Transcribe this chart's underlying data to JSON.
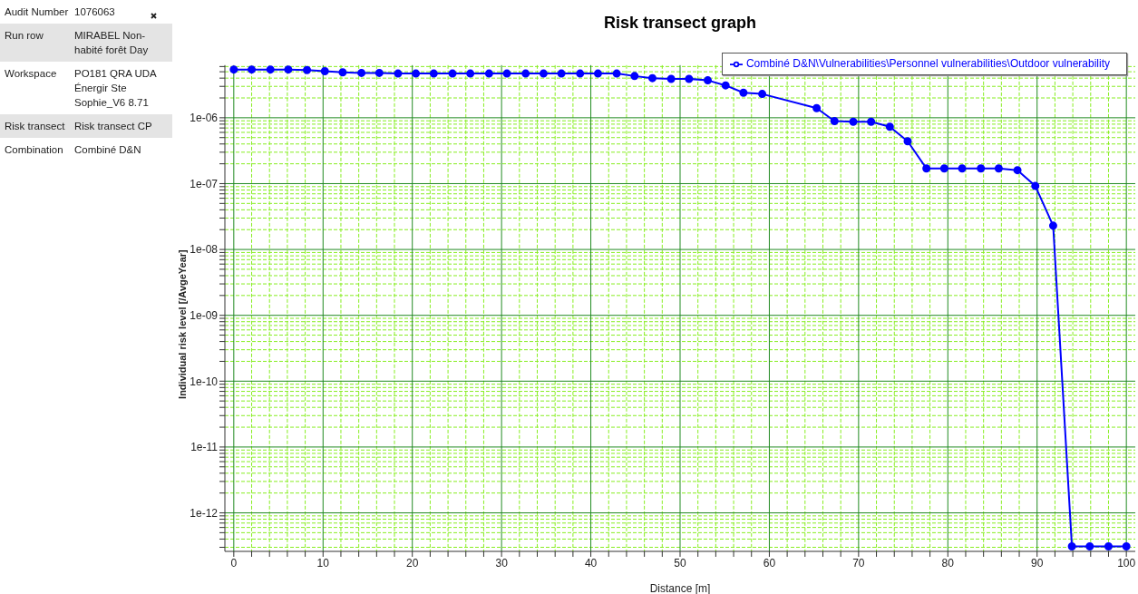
{
  "chart_data": [
    {
      "type": "other",
      "annotations": [
        "Audit Number",
        "1076063",
        "Run row",
        "MIRABEL Non-habité forêt Day",
        "Workspace",
        "PO181 QRA UDA Énergir Ste Sophie_V6 8.71",
        "Risk transect",
        "Risk transect CP",
        "Combination",
        "Combiné D&N"
      ]
    },
    {
      "type": "line",
      "title": "Risk transect graph",
      "xlabel": "Distance [m]",
      "ylabel": "Individual risk level [/AvgeYear]",
      "x": [
        0,
        2,
        4.1,
        6.1,
        8.2,
        10.2,
        12.2,
        14.3,
        16.3,
        18.4,
        20.4,
        22.4,
        24.5,
        26.5,
        28.6,
        30.6,
        32.7,
        34.7,
        36.7,
        38.8,
        40.8,
        42.9,
        44.9,
        46.9,
        49,
        51,
        53.1,
        55.1,
        57.1,
        59.2,
        61.2,
        63.3,
        65.3,
        67.3,
        69.4,
        71.4,
        73.5,
        75.5,
        77.6,
        79.6,
        81.6,
        83.7,
        85.7,
        87.8,
        89.8,
        91.8,
        93.9,
        95.9,
        98,
        100
      ],
      "series": [
        {
          "name": "Combiné D&N\\Vulnerabilities\\Personnel vulnerabilities\\Outdoor vulnerability",
          "color": "#0000ff",
          "values": [
            5.4e-06,
            5.4e-06,
            5.4e-06,
            5.4e-06,
            5.3e-06,
            5.1e-06,
            4.9e-06,
            4.8e-06,
            4.8e-06,
            4.7e-06,
            4.7e-06,
            4.7e-06,
            4.7e-06,
            4.7e-06,
            4.7e-06,
            4.7e-06,
            4.7e-06,
            4.7e-06,
            4.7e-06,
            4.7e-06,
            4.7e-06,
            4.7e-06,
            4.3e-06,
            4e-06,
            3.9e-06,
            3.9e-06,
            3.7e-06,
            3.1e-06,
            2.4e-06,
            2.3e-06,
            null,
            null,
            1.4e-06,
            8.9e-07,
            8.7e-07,
            8.7e-07,
            7.3e-07,
            4.4e-07,
            1.7e-07,
            1.7e-07,
            1.7e-07,
            1.7e-07,
            1.7e-07,
            1.6e-07,
            9.2e-08,
            2.3e-08,
            3.1e-13,
            3.1e-13,
            3.1e-13,
            3.1e-13
          ]
        }
      ],
      "xlim": [
        -1,
        101
      ],
      "xticks": [
        0,
        {
          "value": 2,
          "label": null
        },
        {
          "value": 4,
          "label": null
        },
        {
          "value": 6,
          "label": null
        },
        {
          "value": 8,
          "label": null
        },
        10,
        {
          "value": 12,
          "label": null
        },
        {
          "value": 14,
          "label": null
        },
        {
          "value": 16,
          "label": null
        },
        {
          "value": 18,
          "label": null
        },
        20,
        {
          "value": 22,
          "label": null
        },
        {
          "value": 24,
          "label": null
        },
        {
          "value": 26,
          "label": null
        },
        {
          "value": 28,
          "label": null
        },
        30,
        {
          "value": 32,
          "label": null
        },
        {
          "value": 34,
          "label": null
        },
        {
          "value": 36,
          "label": null
        },
        {
          "value": 38,
          "label": null
        },
        40,
        {
          "value": 42,
          "label": null
        },
        {
          "value": 44,
          "label": null
        },
        {
          "value": 46,
          "label": null
        },
        {
          "value": 48,
          "label": null
        },
        50,
        {
          "value": 52,
          "label": null
        },
        {
          "value": 54,
          "label": null
        },
        {
          "value": 56,
          "label": null
        },
        {
          "value": 58,
          "label": null
        },
        60,
        {
          "value": 62,
          "label": null
        },
        {
          "value": 64,
          "label": null
        },
        {
          "value": 66,
          "label": null
        },
        {
          "value": 68,
          "label": null
        },
        70,
        {
          "value": 72,
          "label": null
        },
        {
          "value": 74,
          "label": null
        },
        {
          "value": 76,
          "label": null
        },
        {
          "value": 78,
          "label": null
        },
        80,
        {
          "value": 82,
          "label": null
        },
        {
          "value": 84,
          "label": null
        },
        {
          "value": 86,
          "label": null
        },
        {
          "value": 88,
          "label": null
        },
        90,
        {
          "value": 92,
          "label": null
        },
        {
          "value": 94,
          "label": null
        },
        {
          "value": 96,
          "label": null
        },
        {
          "value": 98,
          "label": null
        },
        100
      ],
      "ylim": [
        2.6e-13,
        6.3e-06
      ],
      "yticks": [
        {
          "value": 3e-13,
          "label": null
        },
        {
          "value": 4e-13,
          "label": null
        },
        {
          "value": 5e-13,
          "label": null
        },
        {
          "value": 6e-13,
          "label": null
        },
        {
          "value": 7e-13,
          "label": null
        },
        {
          "value": 8e-13,
          "label": null
        },
        {
          "value": 9e-13,
          "label": null
        },
        {
          "value": 1e-12,
          "label": "1e-12"
        },
        {
          "value": 2e-12,
          "label": null
        },
        {
          "value": 3e-12,
          "label": null
        },
        {
          "value": 4e-12,
          "label": null
        },
        {
          "value": 5e-12,
          "label": null
        },
        {
          "value": 6e-12,
          "label": null
        },
        {
          "value": 7e-12,
          "label": null
        },
        {
          "value": 8e-12,
          "label": null
        },
        {
          "value": 9e-12,
          "label": null
        },
        {
          "value": 1e-11,
          "label": "1e-11"
        },
        {
          "value": 2e-11,
          "label": null
        },
        {
          "value": 3e-11,
          "label": null
        },
        {
          "value": 4e-11,
          "label": null
        },
        {
          "value": 5e-11,
          "label": null
        },
        {
          "value": 6e-11,
          "label": null
        },
        {
          "value": 7e-11,
          "label": null
        },
        {
          "value": 8e-11,
          "label": null
        },
        {
          "value": 9e-11,
          "label": null
        },
        {
          "value": 1e-10,
          "label": "1e-10"
        },
        {
          "value": 2e-10,
          "label": null
        },
        {
          "value": 3e-10,
          "label": null
        },
        {
          "value": 4e-10,
          "label": null
        },
        {
          "value": 5e-10,
          "label": null
        },
        {
          "value": 6e-10,
          "label": null
        },
        {
          "value": 7e-10,
          "label": null
        },
        {
          "value": 8e-10,
          "label": null
        },
        {
          "value": 9e-10,
          "label": null
        },
        {
          "value": 1e-09,
          "label": "1e-09"
        },
        {
          "value": 2e-09,
          "label": null
        },
        {
          "value": 3e-09,
          "label": null
        },
        {
          "value": 4e-09,
          "label": null
        },
        {
          "value": 5e-09,
          "label": null
        },
        {
          "value": 6e-09,
          "label": null
        },
        {
          "value": 7e-09,
          "label": null
        },
        {
          "value": 8e-09,
          "label": null
        },
        {
          "value": 9e-09,
          "label": null
        },
        {
          "value": 1e-08,
          "label": "1e-08"
        },
        {
          "value": 2e-08,
          "label": null
        },
        {
          "value": 3e-08,
          "label": null
        },
        {
          "value": 4e-08,
          "label": null
        },
        {
          "value": 5e-08,
          "label": null
        },
        {
          "value": 6e-08,
          "label": null
        },
        {
          "value": 7e-08,
          "label": null
        },
        {
          "value": 8e-08,
          "label": null
        },
        {
          "value": 9e-08,
          "label": null
        },
        {
          "value": 1e-07,
          "label": "1e-07"
        },
        {
          "value": 2e-07,
          "label": null
        },
        {
          "value": 3e-07,
          "label": null
        },
        {
          "value": 4e-07,
          "label": null
        },
        {
          "value": 5e-07,
          "label": null
        },
        {
          "value": 6e-07,
          "label": null
        },
        {
          "value": 7e-07,
          "label": null
        },
        {
          "value": 8e-07,
          "label": null
        },
        {
          "value": 9e-07,
          "label": null
        },
        {
          "value": 1e-06,
          "label": "1e-06"
        },
        {
          "value": 2e-06,
          "label": null
        },
        {
          "value": 3e-06,
          "label": null
        },
        {
          "value": 4e-06,
          "label": null
        },
        {
          "value": 5e-06,
          "label": null
        },
        {
          "value": 6e-06,
          "label": null
        }
      ],
      "log": true,
      "grid": true,
      "legend": "top right",
      "marker": "circle",
      "line_style": "solid"
    }
  ]
}
